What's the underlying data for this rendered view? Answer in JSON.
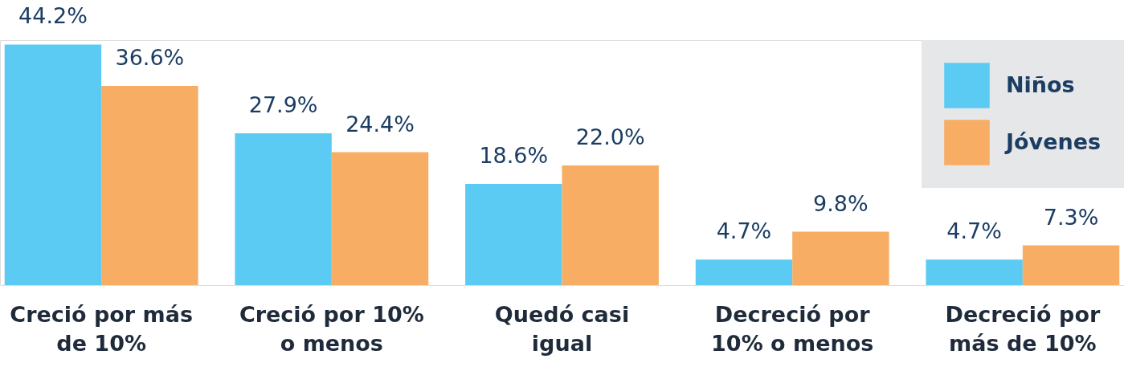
{
  "chart_data": {
    "type": "bar",
    "categories": [
      "Creció por más de 10%",
      "Creció por 10% o menos",
      "Quedó casi igual",
      "Decreció por 10% o menos",
      "Decreció por más de 10%"
    ],
    "series": [
      {
        "name": "Niños",
        "color": "#5ccbf3",
        "values": [
          44.2,
          27.9,
          18.6,
          4.7,
          4.7
        ],
        "value_labels": [
          "44.2%",
          "27.9%",
          "18.6%",
          "4.7%",
          "4.7%"
        ]
      },
      {
        "name": "Jóvenes",
        "color": "#f7ad63",
        "values": [
          36.6,
          24.4,
          22.0,
          9.8,
          7.3
        ],
        "value_labels": [
          "36.6%",
          "24.4%",
          "22.0%",
          "9.8%",
          "7.3%"
        ]
      }
    ],
    "legend": "top right",
    "grid": false
  }
}
